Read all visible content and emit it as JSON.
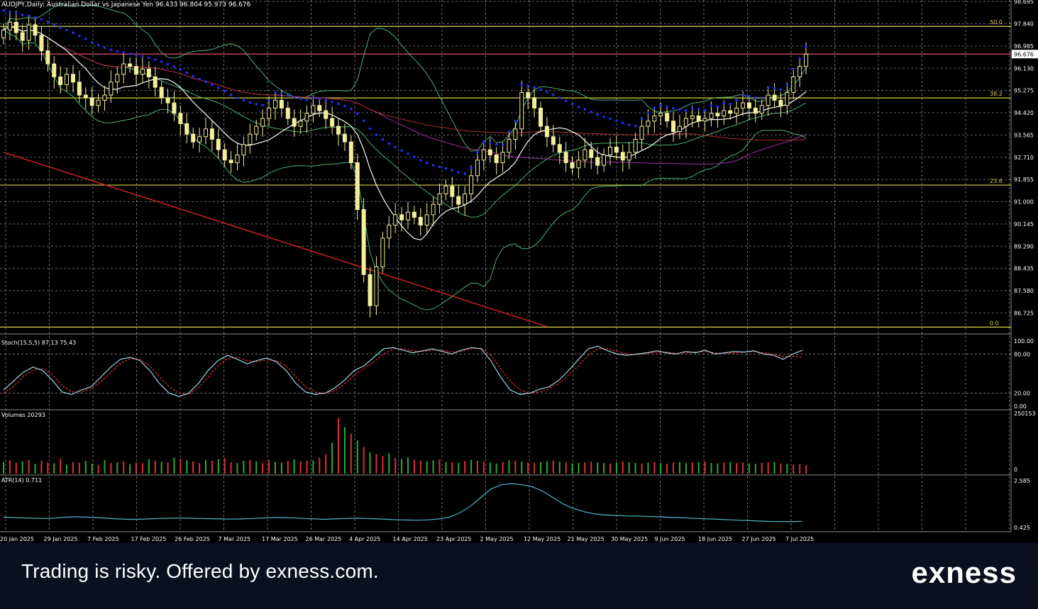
{
  "header": {
    "symbol_line": "AUDJPY,Daily:  Australian Dollar vs Japanese Yen  96.433 96.804 95.973 96.676"
  },
  "footer": {
    "disclaimer": "Trading is risky. Offered by exness.com.",
    "logo": "exness"
  },
  "colors": {
    "background": "#000000",
    "grid": "#c8c8c8",
    "candle": "#f2ee9a",
    "fib": "#d8d24a",
    "price_line": "#e05a5a",
    "trend_line": "#d02020",
    "sma_fast": "#ffffff",
    "bollinger": "#4fae6f",
    "ma_slow": "#a02fa0",
    "ma_red": "#b03030",
    "sar": "#2030ff",
    "stoch_main": "#9fd3e6",
    "stoch_signal": "#e03030",
    "volume_up": "#2faa2f",
    "volume_down": "#e03030",
    "atr": "#4fb7c7",
    "axis_text": "#ffffff"
  },
  "chart_data": [
    {
      "type": "candlestick",
      "title": "AUDJPY,Daily:  Australian Dollar vs Japanese Yen  96.433 96.804 95.973 96.676",
      "ylim": [
        86.0,
        98.7
      ],
      "yticks": [
        "98.695",
        "97.840",
        "96.985",
        "96.130",
        "95.275",
        "94.420",
        "93.565",
        "92.710",
        "91.855",
        "91.000",
        "90.145",
        "89.290",
        "88.435",
        "87.580",
        "86.725"
      ],
      "current_price": "96.676",
      "x_labels": [
        "20 Jan 2025",
        "29 Jan 2025",
        "7 Feb 2025",
        "17 Feb 2025",
        "26 Feb 2025",
        "7 Mar 2025",
        "17 Mar 2025",
        "26 Mar 2025",
        "4 Apr 2025",
        "14 Apr 2025",
        "23 Apr 2025",
        "2 May 2025",
        "12 May 2025",
        "21 May 2025",
        "30 May 2025",
        "9 Jun 2025",
        "18 Jun 2025",
        "27 Jun 2025",
        "7 Jul 2025"
      ],
      "fib_levels": [
        {
          "label": "50.0",
          "value": 97.74
        },
        {
          "label": "38.2",
          "value": 94.99
        },
        {
          "label": "23.6",
          "value": 91.64
        },
        {
          "label": "0.0",
          "value": 86.18
        }
      ],
      "trend_line": [
        {
          "x": 0,
          "y": 92.9
        },
        {
          "x": 86,
          "y": 86.2
        }
      ],
      "closes": [
        97.6,
        97.9,
        97.5,
        97.2,
        97.8,
        97.4,
        96.8,
        96.3,
        95.8,
        95.5,
        95.9,
        95.6,
        95.1,
        95.0,
        94.7,
        94.9,
        95.1,
        95.6,
        95.9,
        96.3,
        96.2,
        95.9,
        96.1,
        95.8,
        95.4,
        95.0,
        94.8,
        94.4,
        94.0,
        93.6,
        93.3,
        93.5,
        93.8,
        93.4,
        93.0,
        92.6,
        92.5,
        92.8,
        93.2,
        93.6,
        93.9,
        94.2,
        94.6,
        94.9,
        94.6,
        94.2,
        93.9,
        94.1,
        94.4,
        94.7,
        94.5,
        94.2,
        93.9,
        93.6,
        93.3,
        92.5,
        90.7,
        88.2,
        87.0,
        88.5,
        89.6,
        90.1,
        90.5,
        90.3,
        90.6,
        90.4,
        90.1,
        90.5,
        90.9,
        91.3,
        91.6,
        91.2,
        90.9,
        91.3,
        92.0,
        92.6,
        93.0,
        92.8,
        92.5,
        92.9,
        93.4,
        93.8,
        95.2,
        95.0,
        94.6,
        93.9,
        93.5,
        93.2,
        92.9,
        92.5,
        92.3,
        92.6,
        93.0,
        92.7,
        92.4,
        92.8,
        93.1,
        92.9,
        92.6,
        92.9,
        93.4,
        93.9,
        94.1,
        94.3,
        94.4,
        94.1,
        93.7,
        93.9,
        94.2,
        94.3,
        94.1,
        94.2,
        94.4,
        94.3,
        94.5,
        94.4,
        94.6,
        94.8,
        94.6,
        94.4,
        94.7,
        95.1,
        94.9,
        94.7,
        95.2,
        95.8,
        96.2,
        96.676
      ]
    },
    {
      "type": "line",
      "title": "Stoch(15,5,5) 87.13 75.43",
      "ylim": [
        0,
        100
      ],
      "yticks": [
        "100.00",
        "80.00",
        "20.00",
        "0.00"
      ],
      "series": [
        {
          "name": "Stoch(15,5,5)",
          "values": [
            25,
            38,
            52,
            60,
            55,
            40,
            22,
            18,
            25,
            30,
            45,
            60,
            72,
            75,
            70,
            55,
            35,
            20,
            15,
            20,
            35,
            55,
            70,
            78,
            72,
            65,
            70,
            74,
            68,
            55,
            35,
            22,
            18,
            20,
            28,
            40,
            55,
            62,
            75,
            88,
            90,
            86,
            82,
            85,
            88,
            84,
            80,
            86,
            90,
            88,
            70,
            45,
            25,
            18,
            20,
            26,
            30,
            40,
            55,
            72,
            88,
            92,
            85,
            80,
            78,
            80,
            82,
            85,
            82,
            80,
            84,
            82,
            86,
            80,
            82,
            84,
            83,
            85,
            80,
            78,
            72,
            80,
            86
          ]
        },
        {
          "name": "signal",
          "values": [
            20,
            30,
            45,
            55,
            58,
            48,
            32,
            22,
            22,
            27,
            38,
            52,
            66,
            73,
            72,
            62,
            45,
            30,
            20,
            18,
            28,
            45,
            62,
            73,
            75,
            70,
            68,
            71,
            70,
            62,
            45,
            30,
            22,
            20,
            24,
            34,
            48,
            58,
            68,
            80,
            88,
            88,
            85,
            84,
            86,
            86,
            83,
            84,
            88,
            89,
            78,
            58,
            38,
            25,
            20,
            22,
            27,
            35,
            48,
            62,
            78,
            88,
            88,
            84,
            80,
            79,
            81,
            83,
            83,
            81,
            82,
            83,
            84,
            82,
            81,
            82,
            83,
            84,
            82,
            80,
            76,
            77,
            75
          ]
        }
      ]
    },
    {
      "type": "bar",
      "title": "Volumes 20293",
      "ylim": [
        0,
        250153
      ],
      "yticks": [
        "250153",
        "0"
      ],
      "values": [
        52,
        60,
        48,
        55,
        62,
        44,
        58,
        50,
        47,
        66,
        40,
        52,
        49,
        58,
        45,
        40,
        62,
        48,
        51,
        55,
        43,
        50,
        47,
        66,
        58,
        54,
        50,
        72,
        68,
        60,
        55,
        48,
        62,
        58,
        66,
        70,
        52,
        48,
        58,
        62,
        55,
        47,
        60,
        52,
        50,
        58,
        64,
        55,
        58,
        60,
        72,
        88,
        140,
        250,
        210,
        180,
        150,
        120,
        96,
        88,
        80,
        92,
        70,
        66,
        74,
        62,
        58,
        55,
        60,
        64,
        52,
        50,
        48,
        56,
        62,
        58,
        54,
        50,
        46,
        52,
        60,
        58,
        55,
        50,
        48,
        52,
        56,
        58,
        54,
        50,
        46,
        48,
        52,
        55,
        50,
        48,
        46,
        50,
        55,
        52,
        48,
        46,
        50,
        52,
        48,
        45,
        50,
        52,
        48,
        50,
        52,
        55,
        48,
        46,
        50,
        52,
        48,
        50,
        46,
        44,
        48,
        50,
        52,
        46,
        44,
        40,
        42,
        38
      ],
      "colors": [
        "up",
        "down",
        "down",
        "up",
        "down",
        "up",
        "down",
        "down",
        "up",
        "down",
        "up",
        "down",
        "down",
        "up",
        "up",
        "down",
        "up",
        "down",
        "up",
        "down",
        "up",
        "down",
        "down",
        "up",
        "down",
        "up",
        "down",
        "up",
        "down",
        "up",
        "down",
        "down",
        "up",
        "down",
        "up",
        "down",
        "down",
        "up",
        "up",
        "down",
        "up",
        "down",
        "down",
        "up",
        "up",
        "down",
        "up",
        "down",
        "down",
        "up",
        "down",
        "down",
        "up",
        "down",
        "up",
        "down",
        "up",
        "down",
        "up",
        "down",
        "down",
        "up",
        "down",
        "up",
        "up",
        "down",
        "down",
        "up",
        "up",
        "down",
        "up",
        "down",
        "up",
        "down",
        "up",
        "down",
        "down",
        "up",
        "up",
        "down",
        "up",
        "down",
        "up",
        "down",
        "down",
        "up",
        "up",
        "down",
        "up",
        "down",
        "up",
        "up",
        "down",
        "down",
        "up",
        "up",
        "down",
        "up",
        "down",
        "up",
        "up",
        "down",
        "up",
        "down",
        "up",
        "down",
        "down",
        "up",
        "up",
        "down",
        "up",
        "down",
        "up",
        "up",
        "down",
        "up",
        "down",
        "down",
        "up",
        "up",
        "down",
        "down",
        "up",
        "down",
        "up",
        "down",
        "down",
        "down"
      ]
    },
    {
      "type": "line",
      "title": "ATR(14) 0.711",
      "ylim": [
        0.425,
        2.585
      ],
      "yticks": [
        "2.585",
        "0.425"
      ],
      "series": [
        {
          "name": "ATR(14)",
          "values": [
            0.9,
            0.88,
            0.86,
            0.85,
            0.84,
            0.86,
            0.9,
            0.92,
            0.9,
            0.88,
            0.85,
            0.82,
            0.8,
            0.8,
            0.82,
            0.84,
            0.85,
            0.86,
            0.85,
            0.84,
            0.83,
            0.82,
            0.81,
            0.82,
            0.84,
            0.86,
            0.88,
            0.88,
            0.86,
            0.84,
            0.82,
            0.8,
            0.82,
            0.84,
            0.85,
            0.84,
            0.82,
            0.8,
            0.78,
            0.77,
            0.76,
            0.78,
            0.82,
            0.9,
            1.1,
            1.4,
            1.8,
            2.2,
            2.4,
            2.45,
            2.4,
            2.3,
            2.1,
            1.8,
            1.5,
            1.3,
            1.15,
            1.05,
            1.0,
            0.98,
            0.96,
            0.95,
            0.94,
            0.92,
            0.9,
            0.88,
            0.86,
            0.84,
            0.82,
            0.8,
            0.78,
            0.76,
            0.74,
            0.72,
            0.7,
            0.7,
            0.69,
            0.71
          ]
        }
      ]
    }
  ]
}
